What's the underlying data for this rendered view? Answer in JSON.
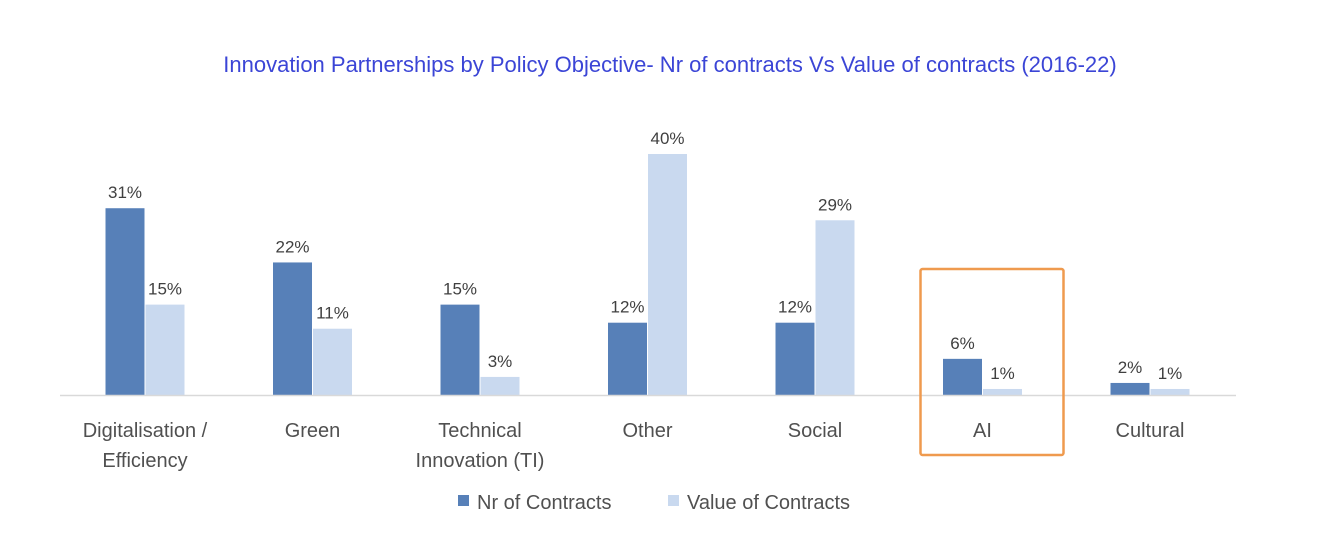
{
  "chart_data": {
    "type": "bar",
    "title": "Innovation Partnerships by Policy Objective- Nr of contracts Vs Value of contracts (2016-22)",
    "xlabel": "",
    "ylabel": "",
    "ylim": [
      0,
      40
    ],
    "grid": false,
    "legend_position": "bottom-center",
    "categories": [
      [
        "Digitalisation /",
        "Efficiency"
      ],
      [
        "Green"
      ],
      [
        "Technical",
        "Innovation (TI)"
      ],
      [
        "Other"
      ],
      [
        "Social"
      ],
      [
        "AI"
      ],
      [
        "Cultural"
      ]
    ],
    "series": [
      {
        "name": "Nr of Contracts",
        "color": "#5780b8",
        "values": [
          31,
          22,
          15,
          12,
          12,
          6,
          2
        ],
        "labels": [
          "31%",
          "22%",
          "15%",
          "12%",
          "12%",
          "6%",
          "2%"
        ]
      },
      {
        "name": "Value of Contracts",
        "color": "#c9d9ef",
        "values": [
          15,
          11,
          3,
          40,
          29,
          1,
          1
        ],
        "labels": [
          "15%",
          "11%",
          "3%",
          "40%",
          "29%",
          "1%",
          "1%"
        ]
      }
    ],
    "highlight": {
      "category": "AI",
      "color": "#ef9a4e"
    },
    "axis_color": "#d9d9d9"
  }
}
